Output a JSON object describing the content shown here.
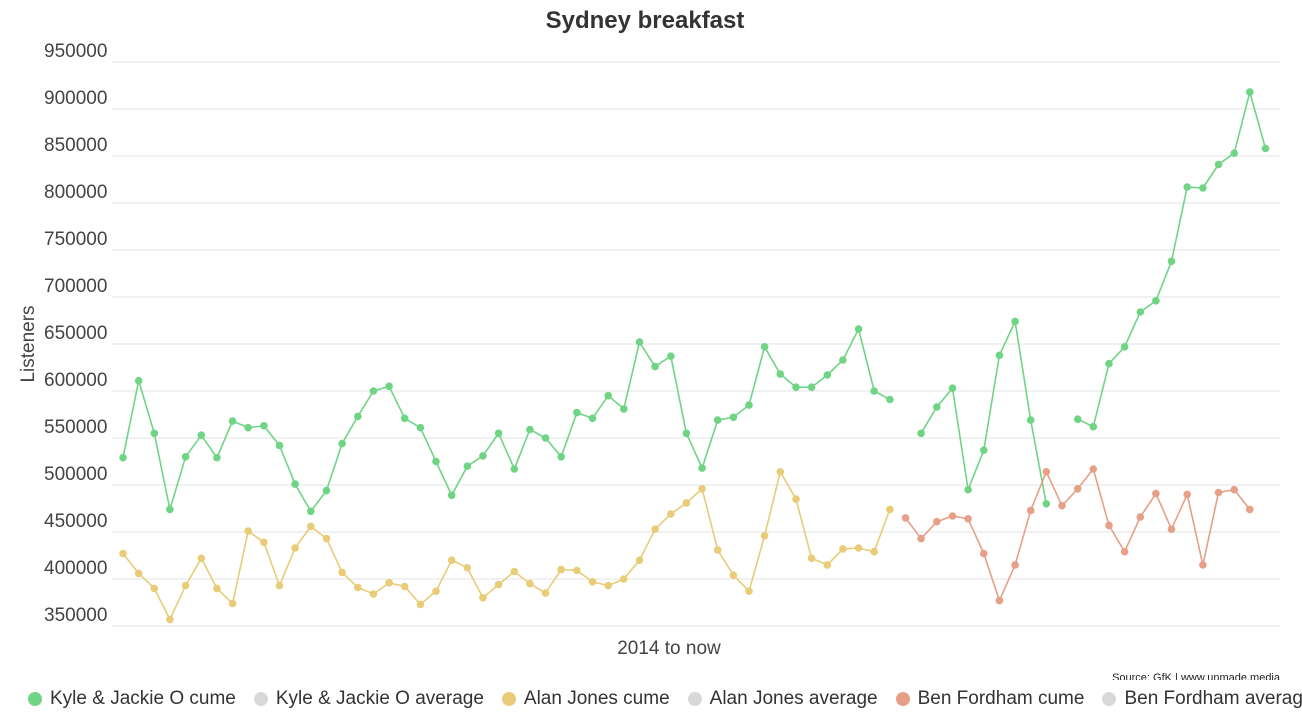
{
  "chart_data": {
    "type": "line",
    "title": "Sydney breakfast",
    "xlabel": "2014 to now",
    "ylabel": "Listeners",
    "ylim": [
      350000,
      950000
    ],
    "yticks": [
      950000,
      900000,
      850000,
      800000,
      750000,
      700000,
      650000,
      600000,
      550000,
      500000,
      450000,
      400000,
      350000
    ],
    "grid": true,
    "legend_position": "bottom",
    "source": "Source: GfK | www.unmade.media",
    "series": [
      {
        "name": "Kyle & Jackie O cume",
        "color": "#6fd585",
        "show": true,
        "values": [
          529000,
          611000,
          555000,
          474000,
          530000,
          553000,
          529000,
          568000,
          561000,
          563000,
          542000,
          501000,
          472000,
          494000,
          544000,
          573000,
          600000,
          605000,
          571000,
          561000,
          525000,
          489000,
          520000,
          531000,
          555000,
          517000,
          559000,
          550000,
          530000,
          577000,
          571000,
          595000,
          581000,
          652000,
          626000,
          637000,
          555000,
          518000,
          569000,
          572000,
          585000,
          647000,
          618000,
          604000,
          604000,
          617000,
          633000,
          666000,
          600000,
          591000,
          null,
          555000,
          583000,
          603000,
          495000,
          537000,
          638000,
          674000,
          569000,
          480000,
          null,
          570000,
          562000,
          629000,
          647000,
          684000,
          696000,
          738000,
          817000,
          816000,
          841000,
          853000,
          918000,
          858000
        ]
      },
      {
        "name": "Kyle & Jackie O average",
        "color": "#d8d8d8",
        "show": false,
        "values": []
      },
      {
        "name": "Alan Jones cume",
        "color": "#e9cc77",
        "show": true,
        "values": [
          427000,
          406000,
          390000,
          357000,
          393000,
          422000,
          390000,
          374000,
          451000,
          439000,
          393000,
          433000,
          456000,
          443000,
          407000,
          391000,
          384000,
          396000,
          392000,
          373000,
          387000,
          420000,
          412000,
          380000,
          394000,
          408000,
          395000,
          385000,
          410000,
          409000,
          397000,
          393000,
          400000,
          420000,
          453000,
          469000,
          481000,
          496000,
          431000,
          404000,
          387000,
          446000,
          514000,
          485000,
          422000,
          415000,
          432000,
          433000,
          429000,
          474000
        ]
      },
      {
        "name": "Alan Jones average",
        "color": "#d8d8d8",
        "show": false,
        "values": []
      },
      {
        "name": "Ben Fordham cume",
        "color": "#e6a088",
        "show": true,
        "values": [
          null,
          null,
          null,
          null,
          null,
          null,
          null,
          null,
          null,
          null,
          null,
          null,
          null,
          null,
          null,
          null,
          null,
          null,
          null,
          null,
          null,
          null,
          null,
          null,
          null,
          null,
          null,
          null,
          null,
          null,
          null,
          null,
          null,
          null,
          null,
          null,
          null,
          null,
          null,
          null,
          null,
          null,
          null,
          null,
          null,
          null,
          null,
          null,
          null,
          null,
          465000,
          443000,
          461000,
          467000,
          464000,
          427000,
          377000,
          415000,
          473000,
          514000,
          478000,
          496000,
          517000,
          457000,
          429000,
          466000,
          491000,
          453000,
          490000,
          415000,
          492000,
          495000,
          474000
        ]
      },
      {
        "name": "Ben Fordham average",
        "color": "#d8d8d8",
        "show": false,
        "values": []
      }
    ]
  }
}
